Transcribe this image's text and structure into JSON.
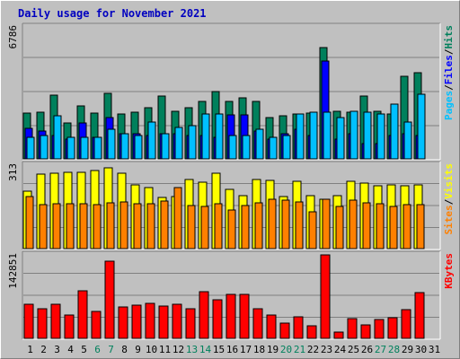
{
  "chart_data": {
    "type": "bar",
    "title": "Daily usage for November 2021",
    "colors": {
      "title": "#0000c0",
      "hits": "#00805c",
      "files": "#0000ff",
      "pages": "#00c0ff",
      "visits": "#ffff00",
      "sites": "#ff8000",
      "kbytes": "#ff0000",
      "weekday_label": "#000000",
      "weekend_label": "#00805c"
    },
    "days": [
      "1",
      "2",
      "3",
      "4",
      "5",
      "6",
      "7",
      "8",
      "9",
      "10",
      "11",
      "12",
      "13",
      "14",
      "15",
      "16",
      "17",
      "18",
      "19",
      "20",
      "21",
      "22",
      "23",
      "24",
      "25",
      "26",
      "27",
      "28",
      "29",
      "30",
      "31"
    ],
    "weekend_days": [
      "6",
      "7",
      "13",
      "14",
      "20",
      "21",
      "27",
      "28"
    ],
    "panels": [
      {
        "id": "hits",
        "max_label": "6786",
        "ymax": 6786,
        "legend": [
          {
            "text": "Pages",
            "color": "#00c0ff"
          },
          {
            "text": "/",
            "color": "#000000"
          },
          {
            "text": "Files",
            "color": "#0000ff"
          },
          {
            "text": "/",
            "color": "#000000"
          },
          {
            "text": "Hits",
            "color": "#00805c"
          }
        ],
        "series": [
          {
            "name": "Hits",
            "color": "#00805c",
            "values": [
              2350,
              2400,
              3250,
              1850,
              2700,
              2350,
              3350,
              2300,
              2400,
              2600,
              3200,
              2450,
              2600,
              2950,
              3450,
              2950,
              3100,
              2950,
              2100,
              2200,
              2300,
              2350,
              5700,
              2450,
              2400,
              3200,
              2450,
              2300,
              4200,
              4400,
              0
            ]
          },
          {
            "name": "Files",
            "color": "#0000ff",
            "values": [
              1550,
              1400,
              1200,
              1000,
              1850,
              1100,
              2100,
              1300,
              1300,
              1200,
              1300,
              1300,
              1200,
              1200,
              1100,
              2250,
              2250,
              1400,
              1000,
              1300,
              1500,
              1200,
              5000,
              1000,
              1300,
              800,
              800,
              1200,
              1300,
              1200,
              0
            ]
          },
          {
            "name": "Pages",
            "color": "#00c0ff",
            "values": [
              1100,
              1200,
              2200,
              1100,
              1100,
              1100,
              1500,
              1300,
              1200,
              1900,
              1300,
              1600,
              1700,
              2300,
              2300,
              1200,
              1200,
              1500,
              1100,
              1200,
              2300,
              2400,
              2400,
              2100,
              2450,
              2400,
              2300,
              2800,
              1900,
              3300,
              0
            ]
          }
        ]
      },
      {
        "id": "visits",
        "max_label": "313",
        "ymax": 313,
        "legend": [
          {
            "text": "Sites",
            "color": "#ff8000"
          },
          {
            "text": "/",
            "color": "#000000"
          },
          {
            "text": "Visits",
            "color": "#ffff00"
          }
        ],
        "series": [
          {
            "name": "Visits",
            "color": "#ffff00",
            "values": [
              212,
              277,
              280,
              283,
              283,
              289,
              300,
              280,
              237,
              226,
              189,
              194,
              257,
              246,
              281,
              221,
              196,
              255,
              253,
              194,
              250,
              196,
              184,
              197,
              250,
              243,
              234,
              237,
              233,
              236,
              0
            ]
          },
          {
            "name": "Sites",
            "color": "#ff8000",
            "values": [
              192,
              162,
              165,
              165,
              165,
              164,
              170,
              172,
              168,
              165,
              175,
              228,
              159,
              156,
              167,
              143,
              160,
              171,
              184,
              179,
              172,
              135,
              183,
              155,
              179,
              171,
              166,
              155,
              164,
              162,
              0
            ]
          }
        ]
      },
      {
        "id": "kbytes",
        "max_label": "142851",
        "ymax": 142851,
        "legend": [
          {
            "text": "KBytes",
            "color": "#ff0000"
          }
        ],
        "series": [
          {
            "name": "KBytes",
            "color": "#ff0000",
            "values": [
              57700,
              50000,
              58500,
              40000,
              80000,
              45000,
              130000,
              53000,
              56000,
              60000,
              55000,
              57000,
              50000,
              79000,
              65000,
              74000,
              74000,
              50000,
              39000,
              26000,
              37000,
              22000,
              141000,
              11000,
              34000,
              23000,
              32000,
              35000,
              49000,
              77000,
              0
            ]
          }
        ]
      }
    ]
  }
}
